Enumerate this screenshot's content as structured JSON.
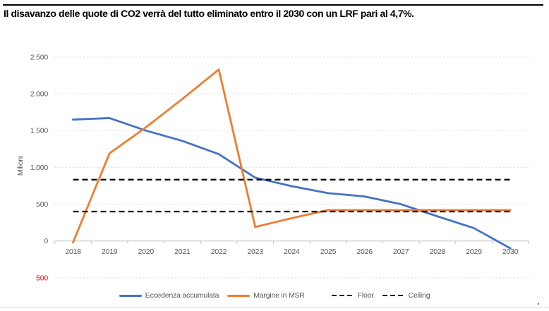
{
  "chart_data": {
    "type": "line",
    "title": "Il disavanzo delle quote di CO2 verrà del tutto eliminato entro il 2030 con un LRF pari al 4,7%.",
    "ylabel": "Milioni",
    "x": [
      "2018",
      "2019",
      "2020",
      "2021",
      "2022",
      "2023",
      "2024",
      "2025",
      "2026",
      "2027",
      "2028",
      "2029",
      "2030"
    ],
    "ylim": [
      -500,
      2500
    ],
    "grid": "horizontal-dashed",
    "legend_position": "bottom-center",
    "yticks": [
      {
        "value": -500,
        "label": "500",
        "negative": true
      },
      {
        "value": 0,
        "label": "0"
      },
      {
        "value": 500,
        "label": "500"
      },
      {
        "value": 1000,
        "label": "1.000"
      },
      {
        "value": 1500,
        "label": "1.500"
      },
      {
        "value": 2000,
        "label": "2.000"
      },
      {
        "value": 2500,
        "label": "2.500"
      }
    ],
    "series": [
      {
        "name": "Eccedenza accumulata",
        "type": "line",
        "color": "#4472C4",
        "values": [
          1650,
          1670,
          1500,
          1360,
          1180,
          860,
          745,
          650,
          605,
          500,
          335,
          175,
          -100
        ]
      },
      {
        "name": "Margine in MSR",
        "type": "line",
        "color": "#ED7D31",
        "values": [
          -20,
          1190,
          1545,
          1930,
          2330,
          190,
          310,
          420,
          420,
          420,
          420,
          420,
          420
        ]
      },
      {
        "name": "Floor",
        "type": "hline-dashed",
        "color": "#000000",
        "value": 400
      },
      {
        "name": "Ceiling",
        "type": "hline-dashed",
        "color": "#000000",
        "value": 833
      }
    ],
    "colors": {
      "grid": "#D9D9D9",
      "axis": "#BFBFBF",
      "tick_label": "#595959",
      "negative_label": "#FF0000"
    }
  }
}
